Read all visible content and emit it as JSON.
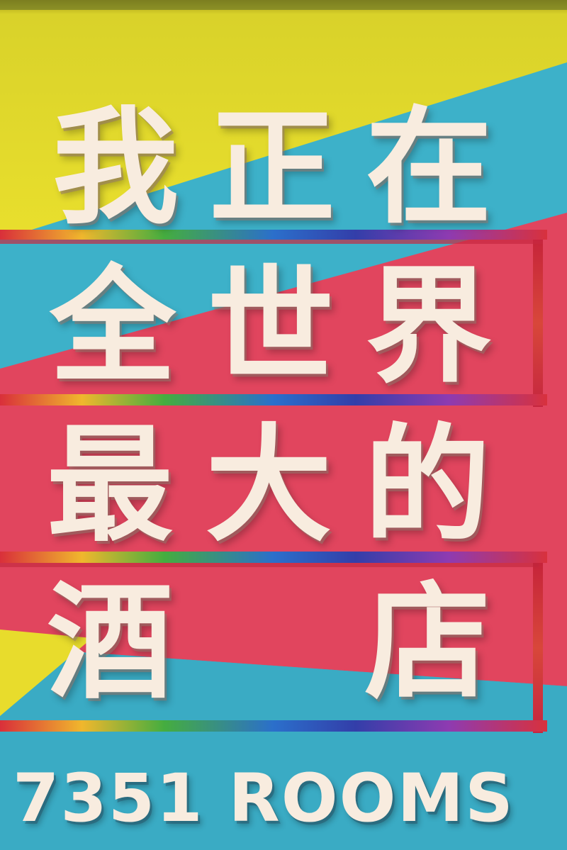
{
  "sign": {
    "line1": [
      "我",
      "正",
      "在"
    ],
    "line2": [
      "全",
      "世",
      "界"
    ],
    "line3": [
      "最",
      "大",
      "的"
    ],
    "line4": [
      "酒",
      "店"
    ],
    "rooms_label": "7351 ROOMS"
  },
  "colors": {
    "yellow": "#e8dd2c",
    "cyan": "#3fb3cc",
    "pink": "#e2445e",
    "lettering": "#f8ecdf",
    "frame_red": "#c8243a",
    "rainbow": [
      "#e02f36",
      "#f2c12a",
      "#3cae3e",
      "#2a67c9",
      "#3a3fb0",
      "#a53ab8",
      "#e02f36"
    ]
  }
}
